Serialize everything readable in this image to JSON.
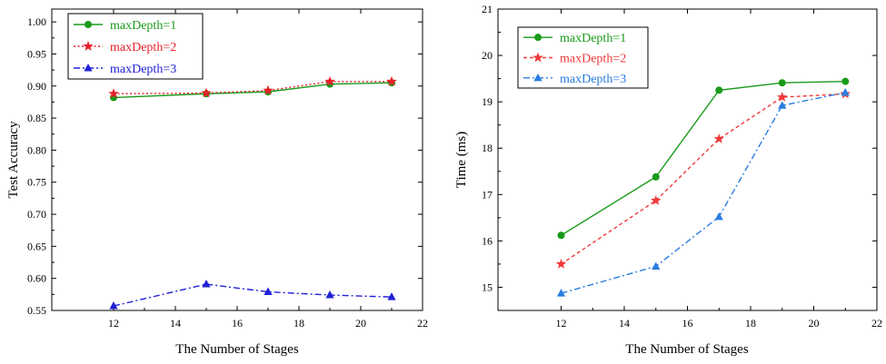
{
  "chart_data": [
    {
      "type": "line",
      "title": "",
      "xlabel": "The Number of Stages",
      "ylabel": "Test Accuracy",
      "xlim": [
        10,
        22
      ],
      "ylim": [
        0.55,
        1.02
      ],
      "x_ticks": [
        12,
        14,
        16,
        18,
        20,
        22
      ],
      "y_ticks": [
        0.55,
        0.6,
        0.65,
        0.7,
        0.75,
        0.8,
        0.85,
        0.9,
        0.95,
        1.0
      ],
      "y_decimals": 2,
      "legend_position": "top-left",
      "series": [
        {
          "name": "maxDepth=1",
          "color": "#1a9a1a",
          "marker": "circle",
          "dash": "solid",
          "x": [
            12,
            15,
            17,
            19,
            21
          ],
          "values": [
            0.882,
            0.888,
            0.891,
            0.903,
            0.905
          ]
        },
        {
          "name": "maxDepth=2",
          "color": "#e8202a",
          "marker": "star",
          "dash": "dotted",
          "x": [
            12,
            15,
            17,
            19,
            21
          ],
          "values": [
            0.888,
            0.889,
            0.893,
            0.907,
            0.907
          ]
        },
        {
          "name": "maxDepth=3",
          "color": "#1f20d6",
          "marker": "triangle",
          "dash": "dashdot",
          "x": [
            12,
            15,
            17,
            19,
            21
          ],
          "values": [
            0.557,
            0.591,
            0.579,
            0.574,
            0.571
          ]
        }
      ]
    },
    {
      "type": "line",
      "title": "",
      "xlabel": "The Number of Stages",
      "ylabel": "Time (ms)",
      "xlim": [
        10,
        22
      ],
      "ylim": [
        14.5,
        21
      ],
      "x_ticks": [
        12,
        14,
        16,
        18,
        20,
        22
      ],
      "y_ticks": [
        15,
        16,
        17,
        18,
        19,
        20,
        21
      ],
      "y_decimals": 0,
      "legend_position": "top-left",
      "series": [
        {
          "name": "maxDepth=1",
          "color": "#1a9a1a",
          "marker": "circle",
          "dash": "solid",
          "x": [
            12,
            15,
            17,
            19,
            21
          ],
          "values": [
            16.12,
            17.38,
            19.25,
            19.41,
            19.44
          ]
        },
        {
          "name": "maxDepth=2",
          "color": "#f03a3a",
          "marker": "star",
          "dash": "dashed",
          "x": [
            12,
            15,
            17,
            19,
            21
          ],
          "values": [
            15.5,
            16.87,
            18.2,
            19.1,
            19.17
          ]
        },
        {
          "name": "maxDepth=3",
          "color": "#2a7de0",
          "marker": "triangle",
          "dash": "dashdot",
          "x": [
            12,
            15,
            17,
            19,
            21
          ],
          "values": [
            14.87,
            15.45,
            16.52,
            18.92,
            19.2
          ]
        }
      ]
    }
  ]
}
